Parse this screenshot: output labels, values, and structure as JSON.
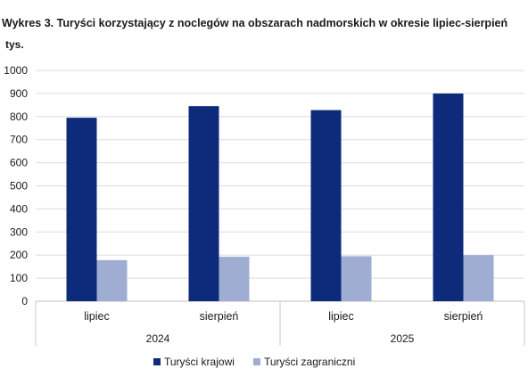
{
  "chart_data": {
    "type": "bar",
    "title": "Wykres 3. Turyści korzystający z noclegów na obszarach nadmorskich w okresie lipiec-sierpień",
    "unit_label": "tys.",
    "ylim": [
      0,
      1000
    ],
    "y_ticks": [
      0,
      100,
      200,
      300,
      400,
      500,
      600,
      700,
      800,
      900,
      1000
    ],
    "grid": true,
    "legend_position": "bottom",
    "categories": [
      "lipiec",
      "sierpień",
      "lipiec",
      "sierpień"
    ],
    "groups": [
      {
        "label": "2024",
        "categories": [
          "lipiec",
          "sierpień"
        ]
      },
      {
        "label": "2025",
        "categories": [
          "lipiec",
          "sierpień"
        ]
      }
    ],
    "series": [
      {
        "name": "Turyści krajowi",
        "color": "#0d2b7a",
        "values": [
          795,
          845,
          828,
          900
        ]
      },
      {
        "name": "Turyści zagraniczni",
        "color": "#9fadd3",
        "values": [
          178,
          193,
          195,
          200
        ]
      }
    ]
  }
}
